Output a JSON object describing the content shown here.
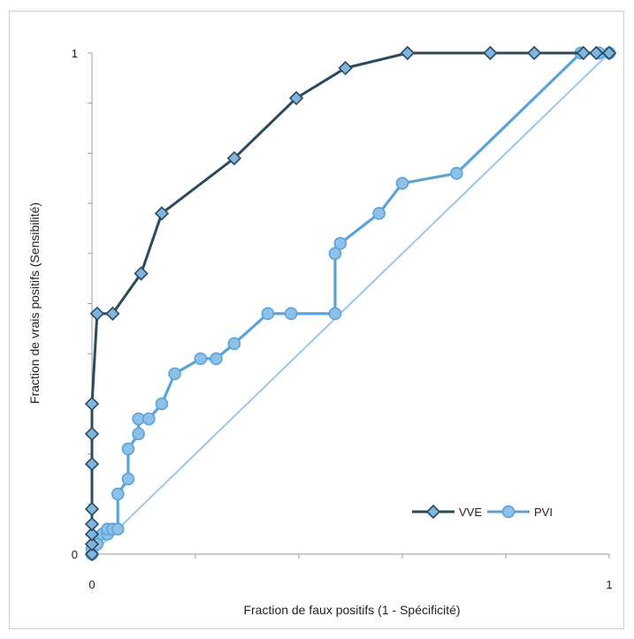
{
  "chart_data": {
    "type": "line",
    "title": "",
    "xlabel": "Fraction de faux positifs (1 - Spécificité)",
    "ylabel": "Fraction de vrais positifs (Sensibilité)",
    "xlim": [
      0,
      1
    ],
    "ylim": [
      0,
      1
    ],
    "x_tick_labels": [
      {
        "value": 0,
        "label": "0"
      },
      {
        "value": 1,
        "label": "1"
      }
    ],
    "y_tick_labels": [
      {
        "value": 0,
        "label": "0"
      },
      {
        "value": 1,
        "label": "1"
      }
    ],
    "grid": false,
    "legend_position": "bottom-right",
    "reference_line": {
      "x": [
        0,
        1
      ],
      "y": [
        0,
        1
      ],
      "color": "#9cc6ea"
    },
    "series": [
      {
        "name": "VVE",
        "color": "#2b4a5c",
        "marker": "diamond",
        "x": [
          0,
          0,
          0,
          0,
          0,
          0,
          0,
          0,
          0.01,
          0.04,
          0.095,
          0.135,
          0.275,
          0.395,
          0.49,
          0.61,
          0.77,
          0.855,
          0.95,
          0.975,
          1
        ],
        "y": [
          0,
          0.02,
          0.04,
          0.06,
          0.09,
          0.18,
          0.24,
          0.3,
          0.48,
          0.48,
          0.56,
          0.68,
          0.79,
          0.91,
          0.97,
          1,
          1,
          1,
          1,
          1,
          1
        ]
      },
      {
        "name": "PVI",
        "color": "#5aa3d8",
        "marker": "circle",
        "x": [
          0,
          0,
          0.01,
          0.02,
          0.03,
          0.03,
          0.04,
          0.05,
          0.05,
          0.07,
          0.07,
          0.09,
          0.09,
          0.11,
          0.135,
          0.16,
          0.21,
          0.24,
          0.275,
          0.34,
          0.385,
          0.47,
          0.47,
          0.48,
          0.555,
          0.6,
          0.705,
          0.945,
          0.98,
          1
        ],
        "y": [
          0,
          0.01,
          0.02,
          0.04,
          0.04,
          0.05,
          0.05,
          0.05,
          0.12,
          0.15,
          0.21,
          0.24,
          0.27,
          0.27,
          0.3,
          0.36,
          0.39,
          0.39,
          0.42,
          0.48,
          0.48,
          0.48,
          0.6,
          0.62,
          0.68,
          0.74,
          0.76,
          1,
          1,
          1
        ]
      }
    ]
  }
}
